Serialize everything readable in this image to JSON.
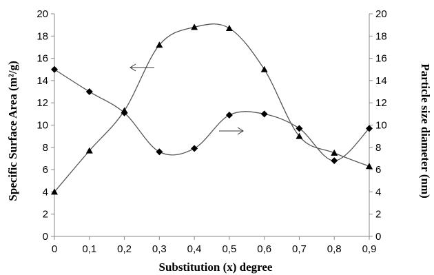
{
  "chart_data": {
    "type": "line",
    "title": "",
    "xlabel": "Substitution (x) degree",
    "ylabel_left": "Specific Surface Area (m²/g)",
    "ylabel_right": "Particle size diameter (nm)",
    "x": [
      0,
      0.1,
      0.2,
      0.3,
      0.4,
      0.5,
      0.6,
      0.7,
      0.8,
      0.9
    ],
    "x_tick_labels": [
      "0",
      "0,1",
      "0,2",
      "0,3",
      "0,4",
      "0,5",
      "0,6",
      "0,7",
      "0,8",
      "0,9"
    ],
    "xlim": [
      0,
      0.9
    ],
    "ylim_left": [
      0,
      20
    ],
    "ylim_right": [
      0,
      20
    ],
    "y_ticks": [
      0,
      2,
      4,
      6,
      8,
      10,
      12,
      14,
      16,
      18,
      20
    ],
    "grid": false,
    "legend": "none",
    "series": [
      {
        "marker": "triangle",
        "axis": "left",
        "values": [
          4,
          7.7,
          11.3,
          17.2,
          18.8,
          18.7,
          15,
          9,
          7.5,
          6.3
        ],
        "arrow": "left"
      },
      {
        "marker": "diamond",
        "axis": "right",
        "values": [
          15,
          13,
          11.1,
          7.6,
          7.9,
          10.9,
          11,
          9.7,
          6.8,
          9.7
        ],
        "arrow": "right"
      }
    ],
    "colors": {
      "line": "#555555",
      "marker": "#000000",
      "axis": "#888888"
    }
  }
}
